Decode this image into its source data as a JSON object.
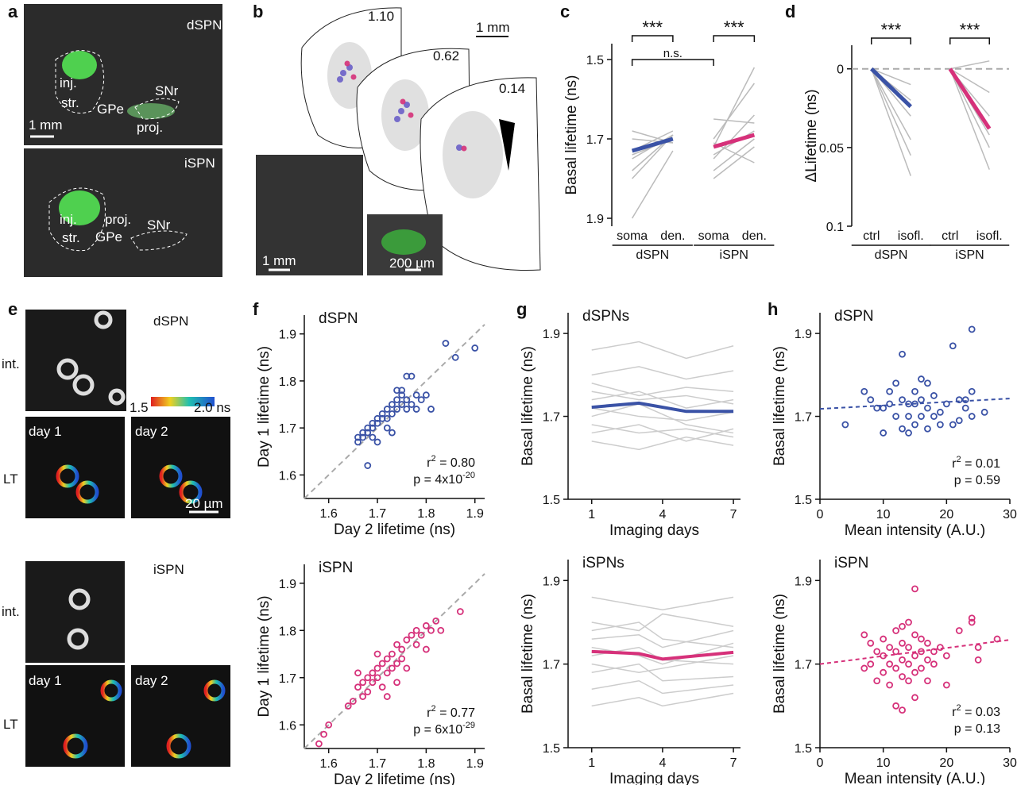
{
  "panels": {
    "a": {
      "letter": "a",
      "labels": [
        "dSPN",
        "inj.",
        "str.",
        "GPe",
        "SNr",
        "proj.",
        "1 mm",
        "iSPN",
        "inj.",
        "proj.",
        "str.",
        "GPe",
        "SNr"
      ]
    },
    "b": {
      "letter": "b",
      "labels": [
        "1.10",
        "1 mm",
        "0.62",
        "0.14",
        "1 mm",
        "200 µm"
      ]
    },
    "e": {
      "letter": "e",
      "labels": [
        "dSPN",
        "int.",
        "1.5",
        "2.0 ns",
        "day 1",
        "day 2",
        "LT",
        "20 µm",
        "iSPN",
        "int.",
        "day 1",
        "day 2",
        "LT"
      ]
    }
  },
  "chart_data": [
    {
      "type": "paired",
      "panel": "c",
      "ylabel": "Basal lifetime (ns)",
      "categories": [
        "soma",
        "den.",
        "soma",
        "den."
      ],
      "groups": [
        "dSPN",
        "iSPN"
      ],
      "ylim": [
        1.92,
        1.46
      ],
      "yticks": [
        1.5,
        1.7,
        1.9
      ],
      "annotations": [
        "***",
        "***",
        "n.s."
      ],
      "series": [
        {
          "color": "#bbbbbb",
          "values": [
            1.75,
            1.69,
            null,
            null
          ]
        },
        {
          "color": "#bbbbbb",
          "values": [
            1.73,
            1.68,
            null,
            null
          ]
        },
        {
          "color": "#bbbbbb",
          "values": [
            1.8,
            1.69,
            null,
            null
          ]
        },
        {
          "color": "#bbbbbb",
          "values": [
            1.7,
            1.71,
            null,
            null
          ]
        },
        {
          "color": "#bbbbbb",
          "values": [
            1.74,
            1.7,
            null,
            null
          ]
        },
        {
          "color": "#bbbbbb",
          "values": [
            1.9,
            1.73,
            null,
            null
          ]
        },
        {
          "color": "#bbbbbb",
          "values": [
            1.78,
            1.69,
            null,
            null
          ]
        },
        {
          "color": "#bbbbbb",
          "values": [
            1.68,
            1.71,
            null,
            null
          ]
        },
        {
          "color": "#bbbbbb",
          "values": [
            null,
            null,
            1.75,
            1.64
          ]
        },
        {
          "color": "#bbbbbb",
          "values": [
            null,
            null,
            1.72,
            1.52
          ]
        },
        {
          "color": "#bbbbbb",
          "values": [
            null,
            null,
            1.7,
            1.56
          ]
        },
        {
          "color": "#bbbbbb",
          "values": [
            null,
            null,
            1.78,
            1.7
          ]
        },
        {
          "color": "#bbbbbb",
          "values": [
            null,
            null,
            1.65,
            1.66
          ]
        },
        {
          "color": "#bbbbbb",
          "values": [
            null,
            null,
            1.8,
            1.72
          ]
        },
        {
          "color": "#bbbbbb",
          "values": [
            null,
            null,
            1.74,
            1.68
          ]
        },
        {
          "color": "#bbbbbb",
          "values": [
            null,
            null,
            1.71,
            1.76
          ]
        },
        {
          "color": "#3a52a6",
          "values": [
            1.73,
            1.7,
            null,
            null
          ]
        },
        {
          "color": "#d6317a",
          "values": [
            null,
            null,
            1.72,
            1.69
          ]
        }
      ]
    },
    {
      "type": "paired",
      "panel": "d",
      "ylabel": "ΔLifetime (ns)",
      "categories": [
        "ctrl",
        "isofl.",
        "ctrl",
        "isofl."
      ],
      "groups": [
        "dSPN",
        "iSPN"
      ],
      "ylim": [
        0.1,
        -0.015
      ],
      "yticks": [
        0,
        0.05,
        0.1
      ],
      "zero_line": true,
      "annotations": [
        "***",
        "***"
      ],
      "series": [
        {
          "color": "#bbbbbb",
          "values": [
            0,
            0.068,
            null,
            null
          ]
        },
        {
          "color": "#bbbbbb",
          "values": [
            0,
            0.045,
            null,
            null
          ]
        },
        {
          "color": "#bbbbbb",
          "values": [
            0,
            0.03,
            null,
            null
          ]
        },
        {
          "color": "#bbbbbb",
          "values": [
            0,
            0.02,
            null,
            null
          ]
        },
        {
          "color": "#bbbbbb",
          "values": [
            0,
            0.01,
            null,
            null
          ]
        },
        {
          "color": "#bbbbbb",
          "values": [
            0,
            0.055,
            null,
            null
          ]
        },
        {
          "color": "#bbbbbb",
          "values": [
            null,
            null,
            0,
            0.064
          ]
        },
        {
          "color": "#bbbbbb",
          "values": [
            null,
            null,
            0,
            0.05
          ]
        },
        {
          "color": "#bbbbbb",
          "values": [
            null,
            null,
            0,
            0.03
          ]
        },
        {
          "color": "#bbbbbb",
          "values": [
            null,
            null,
            0,
            0.015
          ]
        },
        {
          "color": "#bbbbbb",
          "values": [
            null,
            null,
            0,
            -0.005
          ]
        },
        {
          "color": "#bbbbbb",
          "values": [
            null,
            null,
            0,
            0.042
          ]
        },
        {
          "color": "#3a52a6",
          "values": [
            0,
            0.024,
            null,
            null
          ]
        },
        {
          "color": "#d6317a",
          "values": [
            null,
            null,
            0,
            0.038
          ]
        }
      ]
    },
    {
      "type": "scatter",
      "panel": "f",
      "title": "dSPN",
      "xlabel": "Day 2 lifetime (ns)",
      "ylabel": "Day 1 lifetime (ns)",
      "unity_line": true,
      "xlim": [
        1.55,
        1.92
      ],
      "ylim": [
        1.55,
        1.94
      ],
      "xticks": [
        1.6,
        1.7,
        1.8,
        1.9
      ],
      "yticks": [
        1.6,
        1.7,
        1.8,
        1.9
      ],
      "color": "#3a52a6",
      "x": [
        1.66,
        1.66,
        1.67,
        1.67,
        1.68,
        1.68,
        1.69,
        1.69,
        1.7,
        1.7,
        1.71,
        1.71,
        1.72,
        1.72,
        1.73,
        1.73,
        1.74,
        1.74,
        1.74,
        1.75,
        1.75,
        1.75,
        1.76,
        1.76,
        1.76,
        1.77,
        1.77,
        1.78,
        1.79,
        1.8,
        1.81,
        1.68,
        1.7,
        1.72,
        1.84,
        1.86,
        1.9,
        1.78,
        1.73,
        1.69
      ],
      "values": [
        1.67,
        1.68,
        1.68,
        1.69,
        1.69,
        1.7,
        1.7,
        1.71,
        1.71,
        1.72,
        1.72,
        1.73,
        1.72,
        1.74,
        1.73,
        1.75,
        1.74,
        1.76,
        1.78,
        1.75,
        1.77,
        1.78,
        1.74,
        1.76,
        1.81,
        1.81,
        1.75,
        1.77,
        1.76,
        1.77,
        1.74,
        1.62,
        1.67,
        1.7,
        1.88,
        1.85,
        1.87,
        1.74,
        1.69,
        1.68
      ],
      "stats": [
        {
          "text": "r",
          "sup": "2",
          "rest": " = 0.80"
        },
        {
          "text": "p = 4x10",
          "sup": "-20"
        }
      ]
    },
    {
      "type": "scatter",
      "title": "iSPN",
      "xlabel": "Day 2 lifetime (ns)",
      "ylabel": "Day 1 lifetime (ns)",
      "unity_line": true,
      "xlim": [
        1.55,
        1.92
      ],
      "ylim": [
        1.55,
        1.94
      ],
      "xticks": [
        1.6,
        1.7,
        1.8,
        1.9
      ],
      "yticks": [
        1.6,
        1.7,
        1.8,
        1.9
      ],
      "color": "#d6317a",
      "x": [
        1.58,
        1.59,
        1.6,
        1.64,
        1.65,
        1.66,
        1.67,
        1.67,
        1.68,
        1.68,
        1.69,
        1.69,
        1.7,
        1.7,
        1.71,
        1.71,
        1.72,
        1.72,
        1.73,
        1.73,
        1.74,
        1.74,
        1.75,
        1.75,
        1.76,
        1.76,
        1.77,
        1.78,
        1.78,
        1.79,
        1.8,
        1.8,
        1.81,
        1.82,
        1.83,
        1.87,
        1.72,
        1.74,
        1.66,
        1.7
      ],
      "values": [
        1.56,
        1.58,
        1.6,
        1.64,
        1.65,
        1.68,
        1.66,
        1.69,
        1.7,
        1.67,
        1.69,
        1.71,
        1.72,
        1.7,
        1.68,
        1.73,
        1.71,
        1.74,
        1.72,
        1.75,
        1.73,
        1.77,
        1.74,
        1.76,
        1.78,
        1.72,
        1.79,
        1.77,
        1.8,
        1.79,
        1.81,
        1.76,
        1.8,
        1.82,
        1.8,
        1.84,
        1.66,
        1.69,
        1.71,
        1.75
      ],
      "stats": [
        {
          "text": "r",
          "sup": "2",
          "rest": " = 0.77"
        },
        {
          "text": "p = 6x10",
          "sup": "-29"
        }
      ]
    },
    {
      "type": "line",
      "panel": "g",
      "title": "dSPNs",
      "xlabel": "Imaging days",
      "ylabel": "Basal lifetime (ns)",
      "xlim": [
        0,
        7.3
      ],
      "ylim": [
        1.5,
        1.95
      ],
      "xticks": [
        1,
        4,
        7
      ],
      "yticks": [
        1.5,
        1.7,
        1.9
      ],
      "x": [
        1,
        3,
        5,
        7
      ],
      "series": [
        {
          "color": "#cccccc",
          "values": [
            1.8,
            1.82,
            1.79,
            1.81
          ]
        },
        {
          "color": "#cccccc",
          "values": [
            1.76,
            1.74,
            1.75,
            1.73
          ]
        },
        {
          "color": "#cccccc",
          "values": [
            1.74,
            1.76,
            1.72,
            1.74
          ]
        },
        {
          "color": "#cccccc",
          "values": [
            1.72,
            1.7,
            1.69,
            1.71
          ]
        },
        {
          "color": "#cccccc",
          "values": [
            1.7,
            1.73,
            1.68,
            1.66
          ]
        },
        {
          "color": "#cccccc",
          "values": [
            1.68,
            1.66,
            1.67,
            1.65
          ]
        },
        {
          "color": "#cccccc",
          "values": [
            1.66,
            1.68,
            1.64,
            1.67
          ]
        },
        {
          "color": "#cccccc",
          "values": [
            1.64,
            1.62,
            1.65,
            1.63
          ]
        },
        {
          "color": "#cccccc",
          "values": [
            1.86,
            1.88,
            1.84,
            1.87
          ]
        },
        {
          "color": "#cccccc",
          "values": [
            1.78,
            1.75,
            1.77,
            1.76
          ]
        },
        {
          "color": "#3a52a6",
          "values": [
            1.722,
            1.732,
            1.712,
            1.712
          ]
        }
      ]
    },
    {
      "type": "line",
      "title": "iSPNs",
      "xlabel": "Imaging days",
      "ylabel": "Basal lifetime (ns)",
      "xlim": [
        0,
        7.3
      ],
      "ylim": [
        1.5,
        1.95
      ],
      "xticks": [
        1,
        4,
        7
      ],
      "yticks": [
        1.5,
        1.7,
        1.9
      ],
      "x": [
        1,
        3,
        4,
        7
      ],
      "series": [
        {
          "color": "#cccccc",
          "values": [
            1.8,
            1.78,
            1.82,
            1.79
          ]
        },
        {
          "color": "#cccccc",
          "values": [
            1.76,
            1.77,
            1.74,
            1.78
          ]
        },
        {
          "color": "#cccccc",
          "values": [
            1.74,
            1.72,
            1.7,
            1.75
          ]
        },
        {
          "color": "#cccccc",
          "values": [
            1.72,
            1.74,
            1.71,
            1.7
          ]
        },
        {
          "color": "#cccccc",
          "values": [
            1.7,
            1.68,
            1.69,
            1.72
          ]
        },
        {
          "color": "#cccccc",
          "values": [
            1.68,
            1.7,
            1.66,
            1.67
          ]
        },
        {
          "color": "#cccccc",
          "values": [
            1.64,
            1.66,
            1.63,
            1.65
          ]
        },
        {
          "color": "#cccccc",
          "values": [
            1.6,
            1.62,
            1.6,
            1.63
          ]
        },
        {
          "color": "#cccccc",
          "values": [
            1.86,
            1.84,
            1.83,
            1.86
          ]
        },
        {
          "color": "#cccccc",
          "values": [
            1.78,
            1.8,
            1.76,
            1.74
          ]
        },
        {
          "color": "#d6317a",
          "values": [
            1.73,
            1.725,
            1.712,
            1.728
          ]
        }
      ]
    },
    {
      "type": "scatter",
      "panel": "h",
      "title": "dSPN",
      "xlabel": "Mean intensity (A.U.)",
      "ylabel": "Basal lifetime (ns)",
      "xlim": [
        0,
        30
      ],
      "ylim": [
        1.5,
        1.95
      ],
      "xticks": [
        0,
        10,
        20,
        30
      ],
      "yticks": [
        1.5,
        1.7,
        1.9
      ],
      "color": "#3a52a6",
      "x": [
        4,
        7,
        8,
        9,
        10,
        10,
        11,
        11,
        12,
        12,
        13,
        13,
        13,
        14,
        14,
        14,
        15,
        15,
        15,
        16,
        16,
        16,
        17,
        17,
        17,
        18,
        18,
        19,
        19,
        20,
        21,
        21,
        22,
        22,
        23,
        23,
        24,
        24,
        24,
        26
      ],
      "values": [
        1.68,
        1.76,
        1.74,
        1.72,
        1.66,
        1.72,
        1.73,
        1.76,
        1.78,
        1.7,
        1.74,
        1.67,
        1.85,
        1.7,
        1.73,
        1.66,
        1.76,
        1.73,
        1.68,
        1.74,
        1.79,
        1.7,
        1.72,
        1.78,
        1.67,
        1.7,
        1.75,
        1.68,
        1.71,
        1.73,
        1.87,
        1.68,
        1.74,
        1.69,
        1.72,
        1.74,
        1.91,
        1.76,
        1.7,
        1.71
      ],
      "fit": {
        "x": [
          0,
          30
        ],
        "values": [
          1.718,
          1.743
        ]
      },
      "stats": [
        {
          "text": "r",
          "sup": "2",
          "rest": " = 0.01"
        },
        {
          "text": "p = 0.59"
        }
      ]
    },
    {
      "type": "scatter",
      "title": "iSPN",
      "xlabel": "Mean intensity (A.U.)",
      "ylabel": "Basal lifetime (ns)",
      "xlim": [
        0,
        30
      ],
      "ylim": [
        1.5,
        1.95
      ],
      "xticks": [
        0,
        10,
        20,
        30
      ],
      "yticks": [
        1.5,
        1.7,
        1.9
      ],
      "color": "#d6317a",
      "x": [
        7,
        7,
        8,
        8,
        9,
        9,
        10,
        10,
        10,
        11,
        11,
        11,
        12,
        12,
        12,
        12,
        13,
        13,
        13,
        13,
        13,
        14,
        14,
        14,
        14,
        15,
        15,
        15,
        15,
        15,
        16,
        16,
        16,
        17,
        17,
        17,
        18,
        18,
        19,
        20,
        20,
        22,
        24,
        24,
        25,
        25,
        28
      ],
      "values": [
        1.77,
        1.69,
        1.75,
        1.7,
        1.73,
        1.66,
        1.76,
        1.72,
        1.68,
        1.74,
        1.7,
        1.65,
        1.78,
        1.73,
        1.69,
        1.6,
        1.79,
        1.75,
        1.71,
        1.67,
        1.59,
        1.8,
        1.74,
        1.7,
        1.66,
        1.88,
        1.77,
        1.72,
        1.68,
        1.62,
        1.76,
        1.73,
        1.69,
        1.75,
        1.71,
        1.66,
        1.73,
        1.7,
        1.74,
        1.72,
        1.65,
        1.78,
        1.8,
        1.81,
        1.74,
        1.71,
        1.76
      ],
      "fit": {
        "x": [
          0,
          30
        ],
        "values": [
          1.7,
          1.758
        ]
      },
      "stats": [
        {
          "text": "r",
          "sup": "2",
          "rest": " = 0.03"
        },
        {
          "text": "p = 0.13"
        }
      ]
    }
  ]
}
